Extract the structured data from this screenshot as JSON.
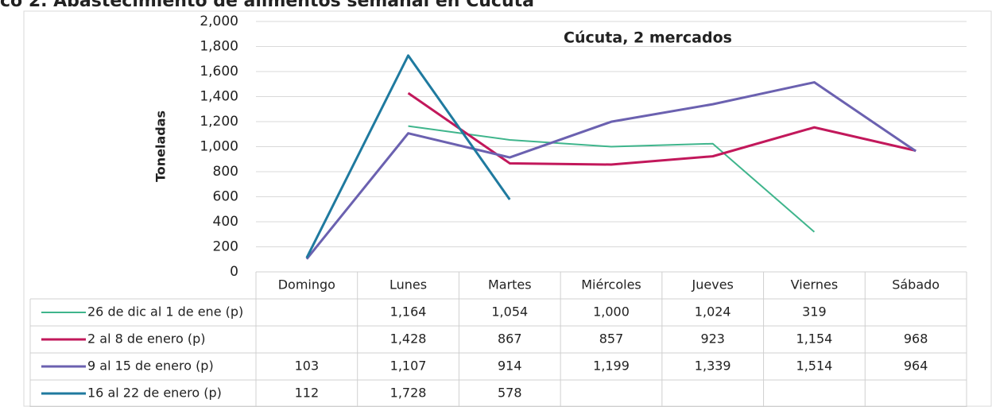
{
  "chart_data": {
    "type": "line",
    "title": "co 2. Abastecimiento de alimentos semanal en Cúcuta",
    "subtitle": "Cúcuta, 2 mercados",
    "y_label": "Toneladas",
    "categories": [
      "Domingo",
      "Lunes",
      "Martes",
      "Miércoles",
      "Jueves",
      "Viernes",
      "Sábado"
    ],
    "series": [
      {
        "name": "26 de dic al 1 de ene (p)",
        "color": "#3fb58c",
        "values": [
          null,
          1164,
          1054,
          1000,
          1024,
          319,
          null
        ],
        "value_labels": [
          null,
          "1,164",
          "1,054",
          "1,000",
          "1,024",
          "319",
          null
        ]
      },
      {
        "name": "2 al 8 de enero (p)",
        "color": "#c2185b",
        "values": [
          null,
          1428,
          867,
          857,
          923,
          1154,
          968
        ],
        "value_labels": [
          null,
          "1,428",
          "867",
          "857",
          "923",
          "1,154",
          "968"
        ]
      },
      {
        "name": "9 al 15 de enero (p)",
        "color": "#6b61b0",
        "values": [
          103,
          1107,
          914,
          1199,
          1339,
          1514,
          964
        ],
        "value_labels": [
          "103",
          "1,107",
          "914",
          "1,199",
          "1,339",
          "1,514",
          "964"
        ]
      },
      {
        "name": "16 al 22 de enero (p)",
        "color": "#1f7a9f",
        "values": [
          112,
          1728,
          578,
          null,
          null,
          null,
          null
        ],
        "value_labels": [
          "112",
          "1,728",
          "578",
          null,
          null,
          null,
          null
        ]
      }
    ],
    "ylim": [
      0,
      2000
    ],
    "yticks": [
      0,
      200,
      400,
      600,
      800,
      {
        "value": 1000,
        "label": "1,000"
      },
      {
        "value": 1200,
        "label": "1,200"
      },
      {
        "value": 1400,
        "label": "1,400"
      },
      {
        "value": 1600,
        "label": "1,600"
      },
      {
        "value": 1800,
        "label": "1,800"
      },
      {
        "value": 2000,
        "label": "2,000"
      }
    ],
    "grid": true
  }
}
